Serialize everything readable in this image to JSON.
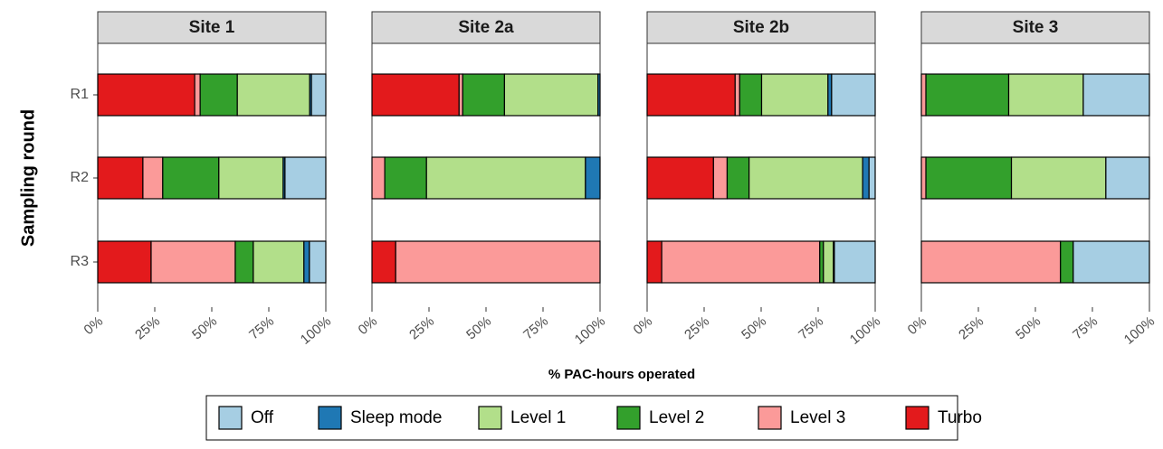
{
  "chart_data": {
    "type": "bar",
    "orientation": "horizontal",
    "stacked": true,
    "ylabel": "Sampling round",
    "xlabel": "% PAC-hours operated",
    "categories": [
      "R1",
      "R2",
      "R3"
    ],
    "xlim": [
      0,
      100
    ],
    "xticks": [
      {
        "value": 0,
        "label": "0%"
      },
      {
        "value": 25,
        "label": "25%"
      },
      {
        "value": 50,
        "label": "50%"
      },
      {
        "value": 75,
        "label": "75%"
      },
      {
        "value": 100,
        "label": "100%"
      }
    ],
    "series": [
      {
        "name": "Turbo",
        "color": "#e31a1c"
      },
      {
        "name": "Level 3",
        "color": "#fb9a99"
      },
      {
        "name": "Level 2",
        "color": "#33a02c"
      },
      {
        "name": "Level 1",
        "color": "#b2df8a"
      },
      {
        "name": "Sleep mode",
        "color": "#1f78b4"
      },
      {
        "name": "Off",
        "color": "#a6cee3"
      }
    ],
    "facets": [
      {
        "title": "Site 1",
        "series": [
          {
            "values": [
              42.5,
              19.8,
              23.4
            ]
          },
          {
            "values": [
              2.4,
              8.7,
              36.9
            ]
          },
          {
            "values": [
              16.3,
              24.6,
              7.9
            ]
          },
          {
            "values": [
              31.7,
              28.2,
              22.2
            ]
          },
          {
            "values": [
              0.8,
              0.8,
              2.4
            ]
          },
          {
            "values": [
              6.3,
              17.9,
              7.2
            ]
          }
        ]
      },
      {
        "title": "Site 2a",
        "series": [
          {
            "values": [
              38.2,
              0,
              10.4
            ]
          },
          {
            "values": [
              1.6,
              5.6,
              89.6
            ]
          },
          {
            "values": [
              18.3,
              18.3,
              0
            ]
          },
          {
            "values": [
              41.0,
              69.7,
              0
            ]
          },
          {
            "values": [
              0.9,
              6.4,
              0
            ]
          },
          {
            "values": [
              0,
              0,
              0
            ]
          }
        ]
      },
      {
        "title": "Site 2b",
        "series": [
          {
            "values": [
              38.6,
              29.1,
              6.4
            ]
          },
          {
            "values": [
              2.0,
              6.0,
              69.3
            ]
          },
          {
            "values": [
              9.6,
              9.6,
              1.6
            ]
          },
          {
            "values": [
              29.1,
              49.8,
              4.4
            ]
          },
          {
            "values": [
              1.6,
              2.8,
              0.4
            ]
          },
          {
            "values": [
              19.1,
              2.7,
              17.9
            ]
          }
        ]
      },
      {
        "title": "Site 3",
        "series": [
          {
            "values": [
              0,
              0,
              0
            ]
          },
          {
            "values": [
              2.0,
              2.0,
              61.0
            ]
          },
          {
            "values": [
              36.3,
              37.5,
              5.6
            ]
          },
          {
            "values": [
              32.7,
              41.4,
              0
            ]
          },
          {
            "values": [
              0,
              0,
              0
            ]
          },
          {
            "values": [
              29.0,
              19.1,
              33.4
            ]
          }
        ]
      }
    ]
  }
}
